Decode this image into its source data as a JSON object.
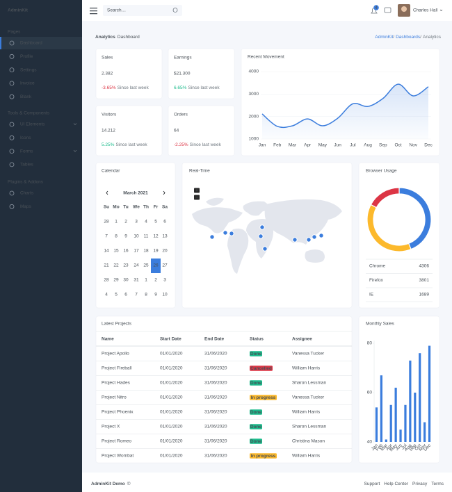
{
  "sidebar": {
    "brand": "AdminKit",
    "sections": [
      {
        "heading": "Pages",
        "items": [
          "Dashboard",
          "Profile",
          "Settings",
          "Invoice",
          "Blank"
        ]
      },
      {
        "heading": "Tools & Components",
        "items": [
          "UI Elements",
          "Icons",
          "Forms",
          "Tables"
        ]
      },
      {
        "heading": "Plugins & Addons",
        "items": [
          "Charts",
          "Maps"
        ]
      }
    ]
  },
  "topbar": {
    "search_placeholder": "Search…",
    "notifications": "4",
    "user": "Charles Hall"
  },
  "header": {
    "title_bold": "Analytics",
    "title_rest": "Dashboard",
    "breadcrumb": [
      "AdminKit",
      "Dashboards",
      "Analytics"
    ],
    "separator": "/"
  },
  "stats": [
    {
      "title": "Sales",
      "value": "2.382",
      "change": "-3.65%",
      "note": "Since last week",
      "color": "#dc3545"
    },
    {
      "title": "Earnings",
      "value": "$21.300",
      "change": "6.65%",
      "note": "Since last week",
      "color": "#1cbb8c"
    },
    {
      "title": "Visitors",
      "value": "14.212",
      "change": "5.25%",
      "note": "Since last week",
      "color": "#1cbb8c"
    },
    {
      "title": "Orders",
      "value": "64",
      "change": "-2.25%",
      "note": "Since last week",
      "color": "#dc3545"
    }
  ],
  "recent_movement": {
    "type": "line",
    "title": "Recent Movement",
    "categories": [
      "Jan",
      "Feb",
      "Mar",
      "Apr",
      "May",
      "Jun",
      "Jul",
      "Aug",
      "Sep",
      "Oct",
      "Nov",
      "Dec"
    ],
    "values": [
      2115,
      1562,
      1584,
      1892,
      1587,
      1923,
      2566,
      2448,
      2805,
      3438,
      2917,
      3327
    ],
    "ylim": [
      1000,
      4000
    ],
    "yticks": [
      1000,
      2000,
      3000,
      4000
    ],
    "color": "#3b7ddd"
  },
  "calendar": {
    "title": "Calendar",
    "month": "March 2021",
    "weekdays": [
      "Su",
      "Mo",
      "Tu",
      "We",
      "Th",
      "Fr",
      "Sa"
    ],
    "weeks": [
      [
        28,
        1,
        2,
        3,
        4,
        5,
        6
      ],
      [
        7,
        8,
        9,
        10,
        11,
        12,
        13
      ],
      [
        14,
        15,
        16,
        17,
        18,
        19,
        20
      ],
      [
        21,
        22,
        23,
        24,
        25,
        26,
        27
      ],
      [
        28,
        29,
        30,
        31,
        1,
        2,
        3
      ],
      [
        4,
        5,
        6,
        7,
        8,
        9,
        10
      ]
    ]
  },
  "realtime": {
    "title": "Real-Time",
    "zoom_in": "+",
    "zoom_out": "−"
  },
  "browser_usage": {
    "type": "doughnut",
    "title": "Browser Usage",
    "series": [
      {
        "name": "Chrome",
        "value": 4306,
        "color": "#3b7ddd"
      },
      {
        "name": "Firefox",
        "value": 3801,
        "color": "#fcb92c"
      },
      {
        "name": "IE",
        "value": 1689,
        "color": "#dc3545"
      }
    ]
  },
  "projects": {
    "title": "Latest Projects",
    "columns": [
      "Name",
      "Start Date",
      "End Date",
      "Status",
      "Assignee"
    ],
    "rows": [
      [
        "Project Apollo",
        "01/01/2020",
        "31/06/2020",
        "Done",
        "Vanessa Tucker"
      ],
      [
        "Project Fireball",
        "01/01/2020",
        "31/06/2020",
        "Cancelled",
        "William Harris"
      ],
      [
        "Project Hades",
        "01/01/2020",
        "31/06/2020",
        "Done",
        "Sharon Lessman"
      ],
      [
        "Project Nitro",
        "01/01/2020",
        "31/06/2020",
        "In progress",
        "Vanessa Tucker"
      ],
      [
        "Project Phoenix",
        "01/01/2020",
        "31/06/2020",
        "Done",
        "William Harris"
      ],
      [
        "Project X",
        "01/01/2020",
        "31/06/2020",
        "Done",
        "Sharon Lessman"
      ],
      [
        "Project Romeo",
        "01/01/2020",
        "31/06/2020",
        "Done",
        "Christina Mason"
      ],
      [
        "Project Wombat",
        "01/01/2020",
        "31/06/2020",
        "In progress",
        "William Harris"
      ]
    ],
    "status_colors": [
      "#1cbb8c",
      "#dc3545",
      "#1cbb8c",
      "#fcb92c",
      "#1cbb8c",
      "#1cbb8c",
      "#1cbb8c",
      "#fcb92c"
    ]
  },
  "monthly_sales": {
    "type": "bar",
    "title": "Monthly Sales",
    "categories": [
      "Jan",
      "Feb",
      "Mar",
      "Apr",
      "May",
      "Jun",
      "Jul",
      "Aug",
      "Sep",
      "Oct",
      "Nov",
      "Dec"
    ],
    "values": [
      54,
      67,
      41,
      55,
      62,
      45,
      55,
      73,
      60,
      76,
      48,
      79
    ],
    "ylim": [
      40,
      80
    ],
    "yticks": [
      40,
      60,
      80
    ],
    "color": "#3b7ddd"
  },
  "footer": {
    "brand": "AdminKit Demo",
    "copyright": "©",
    "links": [
      "Support",
      "Help Center",
      "Privacy",
      "Terms"
    ]
  }
}
